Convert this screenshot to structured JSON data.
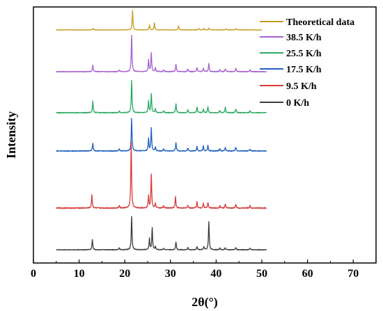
{
  "chart_data": {
    "type": "line",
    "xlabel": "2θ(°)",
    "ylabel": "Intensity",
    "xlim": [
      0,
      75
    ],
    "xticks": [
      0,
      10,
      20,
      30,
      40,
      50,
      60,
      70
    ],
    "legend_placement": "top-right",
    "series": [
      {
        "name": "Theoretical data",
        "color": "#c89a20",
        "x_range": [
          5,
          50
        ],
        "peaks": [
          [
            13.1,
            0.07
          ],
          [
            21.7,
            0.95
          ],
          [
            25.4,
            0.25
          ],
          [
            26.5,
            0.35
          ],
          [
            31.8,
            0.2
          ],
          [
            36.2,
            0.08
          ],
          [
            37.3,
            0.07
          ],
          [
            38.4,
            0.1
          ],
          [
            42.2,
            0.07
          ],
          [
            44.4,
            0.07
          ]
        ]
      },
      {
        "name": "38.5 K/h",
        "color": "#a660d0",
        "x_range": [
          5,
          51
        ],
        "peaks": [
          [
            13.0,
            0.18
          ],
          [
            18.8,
            0.05
          ],
          [
            21.5,
            1.0
          ],
          [
            25.2,
            0.32
          ],
          [
            25.8,
            0.52
          ],
          [
            26.7,
            0.1
          ],
          [
            28.5,
            0.05
          ],
          [
            31.2,
            0.2
          ],
          [
            33.8,
            0.08
          ],
          [
            35.8,
            0.12
          ],
          [
            37.2,
            0.1
          ],
          [
            38.4,
            0.22
          ],
          [
            40.8,
            0.06
          ],
          [
            42.0,
            0.08
          ],
          [
            44.3,
            0.09
          ],
          [
            47.4,
            0.05
          ]
        ]
      },
      {
        "name": "25.5 K/h",
        "color": "#2aaa60",
        "x_range": [
          5,
          51
        ],
        "peaks": [
          [
            13.0,
            0.3
          ],
          [
            18.8,
            0.05
          ],
          [
            21.5,
            0.85
          ],
          [
            25.2,
            0.3
          ],
          [
            25.8,
            0.5
          ],
          [
            26.7,
            0.1
          ],
          [
            28.5,
            0.05
          ],
          [
            31.2,
            0.23
          ],
          [
            33.8,
            0.08
          ],
          [
            35.8,
            0.15
          ],
          [
            37.2,
            0.1
          ],
          [
            38.2,
            0.15
          ],
          [
            40.8,
            0.06
          ],
          [
            42.0,
            0.14
          ],
          [
            44.3,
            0.1
          ],
          [
            47.4,
            0.05
          ]
        ]
      },
      {
        "name": "17.5 K/h",
        "color": "#1f5fbf",
        "x_range": [
          5,
          51
        ],
        "peaks": [
          [
            13.0,
            0.2
          ],
          [
            18.8,
            0.05
          ],
          [
            21.5,
            0.85
          ],
          [
            25.2,
            0.32
          ],
          [
            25.8,
            0.6
          ],
          [
            26.7,
            0.1
          ],
          [
            28.5,
            0.05
          ],
          [
            31.2,
            0.22
          ],
          [
            33.8,
            0.08
          ],
          [
            35.8,
            0.12
          ],
          [
            37.2,
            0.13
          ],
          [
            38.2,
            0.15
          ],
          [
            40.8,
            0.06
          ],
          [
            42.0,
            0.1
          ],
          [
            44.3,
            0.1
          ],
          [
            47.4,
            0.05
          ]
        ]
      },
      {
        "name": "9.5 K/h",
        "color": "#d63a3a",
        "x_range": [
          5,
          51
        ],
        "peaks": [
          [
            12.8,
            0.28
          ],
          [
            18.8,
            0.05
          ],
          [
            21.4,
            1.4
          ],
          [
            25.2,
            0.25
          ],
          [
            25.8,
            0.72
          ],
          [
            26.7,
            0.1
          ],
          [
            28.5,
            0.05
          ],
          [
            31.1,
            0.24
          ],
          [
            33.8,
            0.06
          ],
          [
            35.8,
            0.13
          ],
          [
            37.2,
            0.1
          ],
          [
            38.2,
            0.12
          ],
          [
            40.8,
            0.05
          ],
          [
            42.0,
            0.08
          ],
          [
            44.3,
            0.08
          ],
          [
            47.4,
            0.05
          ]
        ]
      },
      {
        "name": "0 K/h",
        "color": "#3c3c3c",
        "x_range": [
          5,
          51
        ],
        "peaks": [
          [
            12.9,
            0.32
          ],
          [
            18.8,
            0.06
          ],
          [
            21.5,
            1.05
          ],
          [
            25.4,
            0.35
          ],
          [
            26.0,
            0.68
          ],
          [
            26.7,
            0.1
          ],
          [
            28.5,
            0.05
          ],
          [
            31.2,
            0.25
          ],
          [
            33.8,
            0.07
          ],
          [
            35.8,
            0.1
          ],
          [
            37.3,
            0.1
          ],
          [
            38.4,
            0.88
          ],
          [
            40.8,
            0.06
          ],
          [
            42.0,
            0.07
          ],
          [
            44.3,
            0.07
          ],
          [
            47.4,
            0.05
          ]
        ]
      }
    ]
  }
}
